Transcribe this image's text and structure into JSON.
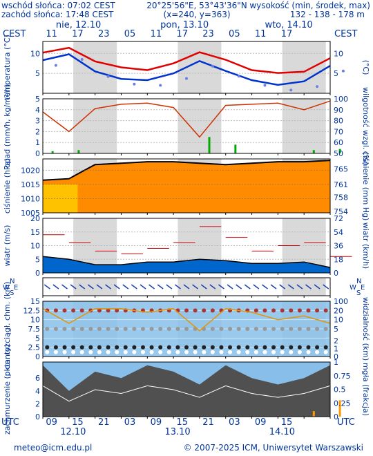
{
  "header": {
    "sunrise": "wschód słońca: 07:02 CEST",
    "sunset": "zachód słońca: 17:48 CEST",
    "coords": "20°25'56\"E, 53°43'36\"N",
    "grid": "(x=240, y=363)",
    "height_label": "wysokość (min, środek, max)",
    "height_values": "132 - 138 - 178 m"
  },
  "timezone_label": "CEST",
  "utc_label": "UTC",
  "days_top": [
    "nie, 12.10",
    "pon, 13.10",
    "wto, 14.10"
  ],
  "days_bottom": [
    "12.10",
    "13.10",
    "14.10"
  ],
  "hours_top": [
    "11",
    "17",
    "23",
    "05",
    "11",
    "17",
    "23",
    "05",
    "11",
    "17"
  ],
  "hours_bottom": [
    "09",
    "15",
    "21",
    "03",
    "09",
    "15",
    "21",
    "03",
    "09",
    "15"
  ],
  "footer": {
    "email": "meteo@icm.edu.pl",
    "copyright": "© 2007-2025 ICM, Uniwersytet Warszawski"
  },
  "colors": {
    "night": "#d9d9d9",
    "temperature": "#e00000",
    "dewpoint": "#0033cc",
    "pressure_fill": "#ff8c00",
    "pressure_day": "#ffd000",
    "wind_fill": "#0066cc",
    "humidity": "#cc3300",
    "precip": "#00aa00",
    "sky": "#87bfea",
    "clouds": "#505050",
    "fog": "#ff9900"
  },
  "chart_data": [
    {
      "type": "line",
      "panel": "temperatura",
      "ylabel_left": "temperatura (°C)",
      "ylabel_right": "(°C)",
      "yticks": [
        5,
        10
      ],
      "ylim": [
        0,
        13
      ],
      "x_hours": [
        0,
        6,
        12,
        18,
        24,
        30,
        36,
        42,
        48,
        54,
        60,
        66
      ],
      "series": [
        {
          "values": [
            10.2,
            11.4,
            8.0,
            6.5,
            5.8,
            7.5,
            10.3,
            8.4,
            5.8,
            5.1,
            5.4,
            8.8
          ]
        },
        {
          "values": [
            8.3,
            9.8,
            5.5,
            3.6,
            3.3,
            5.0,
            8.1,
            5.6,
            3.3,
            2.1,
            3.0,
            6.9
          ]
        }
      ]
    },
    {
      "type": "bar",
      "panel": "opad",
      "ylabel_left": "opad (mm/h, kg/m²/h)",
      "ylabel_right": "wilgotność wzgl. (%)",
      "yticks_left": [
        0,
        1,
        2,
        3,
        4,
        5
      ],
      "yticks_right": [
        50,
        60,
        70,
        80,
        90,
        100
      ],
      "precip": [
        0.2,
        0.3,
        0,
        0,
        0,
        0,
        1.5,
        0.8,
        0,
        0,
        0.3,
        0.4
      ],
      "humidity": [
        88,
        70,
        91,
        95,
        96,
        92,
        65,
        94,
        95,
        96,
        90,
        98
      ]
    },
    {
      "type": "area",
      "panel": "ciśnienie",
      "ylabel_left": "ciśnienie (hPa)",
      "ylabel_right": "ciśnienie (mm Hg)",
      "yticks_left": [
        1005,
        1010,
        1015,
        1020
      ],
      "yticks_right": [
        754,
        758,
        761,
        765
      ],
      "ylim": [
        1005,
        1024
      ],
      "values": [
        1016.5,
        1017,
        1022,
        1022.5,
        1023,
        1023,
        1022.5,
        1022,
        1022.5,
        1023,
        1023,
        1023.5
      ]
    },
    {
      "type": "area",
      "panel": "wiatr",
      "ylabel_left": "wiatr (m/s)",
      "ylabel_right": "wiatr (km/h)",
      "yticks_left": [
        0,
        5,
        10,
        15,
        20
      ],
      "yticks_right": [
        0,
        18,
        36,
        54,
        72
      ],
      "ylim": [
        0,
        20
      ],
      "speed": [
        6,
        5,
        3,
        3,
        4,
        4,
        5,
        4.5,
        3.5,
        3.5,
        4,
        2
      ],
      "gusts": [
        14,
        11,
        8,
        7,
        9,
        11,
        17,
        13,
        8,
        10,
        11,
        6
      ]
    },
    {
      "type": "scatter",
      "panel": "pion. rozciągł. chmur",
      "ylabel_left": "pion. rozciągł. chm. (km)",
      "ylabel_right": "widzialność (km)",
      "yticks_left": [
        0,
        2.5,
        5,
        7.5,
        10,
        12.5,
        15
      ],
      "yticks_right": [
        0,
        1,
        2,
        5,
        10,
        20,
        100
      ],
      "visibility": [
        13,
        9,
        13,
        13,
        12,
        13,
        7,
        13,
        12,
        10,
        11,
        9
      ]
    },
    {
      "type": "area",
      "panel": "zachmurzenie",
      "ylabel_left": "zachmurzenie (oktanty)",
      "ylabel_right": "mgła (frakcja)",
      "yticks_left": [
        0,
        2,
        4,
        6
      ],
      "yticks_right": [
        0,
        0.25,
        0.5,
        0.75,
        1
      ],
      "clouds": [
        8,
        4,
        7,
        6,
        8,
        7,
        5,
        8,
        6,
        5,
        6,
        8
      ],
      "fog": [
        0,
        0,
        0,
        0,
        0,
        0,
        0,
        0,
        0,
        0,
        0.1,
        0.3
      ]
    }
  ]
}
